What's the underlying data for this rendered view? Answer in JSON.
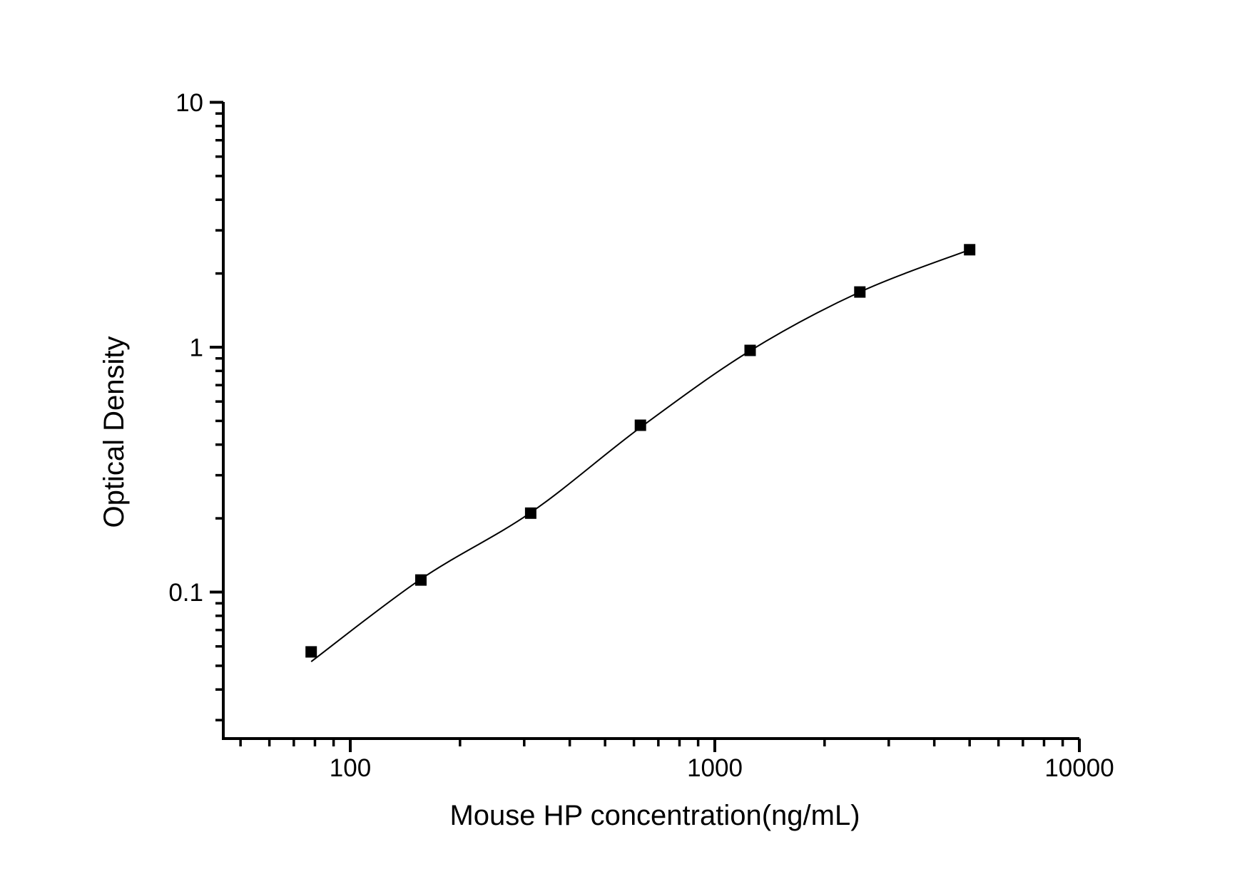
{
  "page": {
    "background": "#ffffff",
    "ink": "#000000"
  },
  "chart_data": {
    "type": "scatter",
    "subtype": "ELISA standard curve with fitted line, log-log axes",
    "title": "",
    "xlabel": "Mouse HP concentration(ng/mL)",
    "ylabel": "Optical Density",
    "x_scale": "log",
    "y_scale": "log",
    "xlim": [
      45,
      10000
    ],
    "ylim": [
      0.025,
      10
    ],
    "grid": false,
    "legend": "none",
    "x_axis": {
      "major_ticks": [
        100,
        1000,
        10000
      ],
      "tick_labels": [
        "100",
        "1000",
        "10000"
      ],
      "minor_ticks": [
        50,
        60,
        70,
        80,
        90,
        200,
        300,
        400,
        500,
        600,
        700,
        800,
        900,
        2000,
        3000,
        4000,
        5000,
        6000,
        7000,
        8000,
        9000
      ]
    },
    "y_axis": {
      "major_ticks": [
        10,
        1,
        0.1
      ],
      "tick_labels": [
        "10",
        "1",
        "0.1"
      ],
      "minor_ticks": [
        0.03,
        0.04,
        0.05,
        0.06,
        0.07,
        0.08,
        0.09,
        0.2,
        0.3,
        0.4,
        0.5,
        0.6,
        0.7,
        0.8,
        0.9,
        2,
        3,
        4,
        5,
        6,
        7,
        8,
        9
      ]
    },
    "series": [
      {
        "name": "standard",
        "marker": "filled-square",
        "marker_size_px": 16,
        "color": "#000000",
        "points": [
          {
            "x": 78.125,
            "od": 0.057
          },
          {
            "x": 156.25,
            "od": 0.112
          },
          {
            "x": 312.5,
            "od": 0.21
          },
          {
            "x": 625,
            "od": 0.48
          },
          {
            "x": 1250,
            "od": 0.97
          },
          {
            "x": 2500,
            "od": 1.68
          },
          {
            "x": 5000,
            "od": 2.5
          }
        ]
      }
    ],
    "fit_curve": {
      "color": "#000000",
      "points": [
        {
          "x": 78.125,
          "od": 0.052
        },
        {
          "x": 156.25,
          "od": 0.113
        },
        {
          "x": 312.5,
          "od": 0.211
        },
        {
          "x": 625,
          "od": 0.47
        },
        {
          "x": 1250,
          "od": 0.967
        },
        {
          "x": 2500,
          "od": 1.68
        },
        {
          "x": 5000,
          "od": 2.5
        }
      ]
    }
  }
}
